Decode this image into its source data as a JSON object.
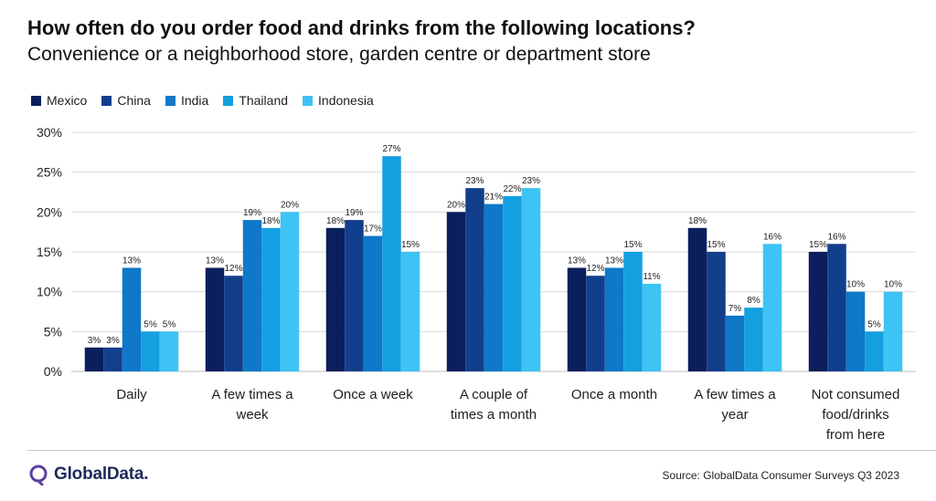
{
  "title": "How often do you order food and drinks from the following locations?",
  "subtitle": "Convenience or a neighborhood store, garden centre or department store",
  "source": "Source: GlobalData Consumer Surveys Q3 2023",
  "brand": {
    "name": "GlobalData.",
    "logo_icon": "globaldata-logo-icon"
  },
  "colors": {
    "Mexico": "#0b1f5c",
    "China": "#123f8c",
    "India": "#0f78c8",
    "Thailand": "#139fe0",
    "Indonesia": "#3ec3f5",
    "grid": "#d9d9d9",
    "axis": "#bfbfbf"
  },
  "chart_data": {
    "type": "bar",
    "categories": [
      [
        "Daily"
      ],
      [
        "A few times a",
        "week"
      ],
      [
        "Once a week"
      ],
      [
        "A couple of",
        "times a month"
      ],
      [
        "Once a month"
      ],
      [
        "A few times a",
        "year"
      ],
      [
        "Not consumed",
        "food/drinks",
        "from here"
      ]
    ],
    "series": [
      {
        "name": "Mexico",
        "values": [
          3,
          13,
          18,
          20,
          13,
          18,
          15
        ]
      },
      {
        "name": "China",
        "values": [
          3,
          12,
          19,
          23,
          12,
          15,
          16
        ]
      },
      {
        "name": "India",
        "values": [
          13,
          19,
          17,
          21,
          13,
          7,
          10
        ]
      },
      {
        "name": "Thailand",
        "values": [
          5,
          18,
          27,
          22,
          15,
          8,
          5
        ]
      },
      {
        "name": "Indonesia",
        "values": [
          5,
          20,
          15,
          23,
          11,
          16,
          10
        ]
      }
    ],
    "ylim": [
      0,
      30
    ],
    "yticks": [
      "0%",
      "5%",
      "10%",
      "15%",
      "20%",
      "25%",
      "30%"
    ],
    "value_suffix": "%",
    "grid": true,
    "legend": "top-left"
  }
}
